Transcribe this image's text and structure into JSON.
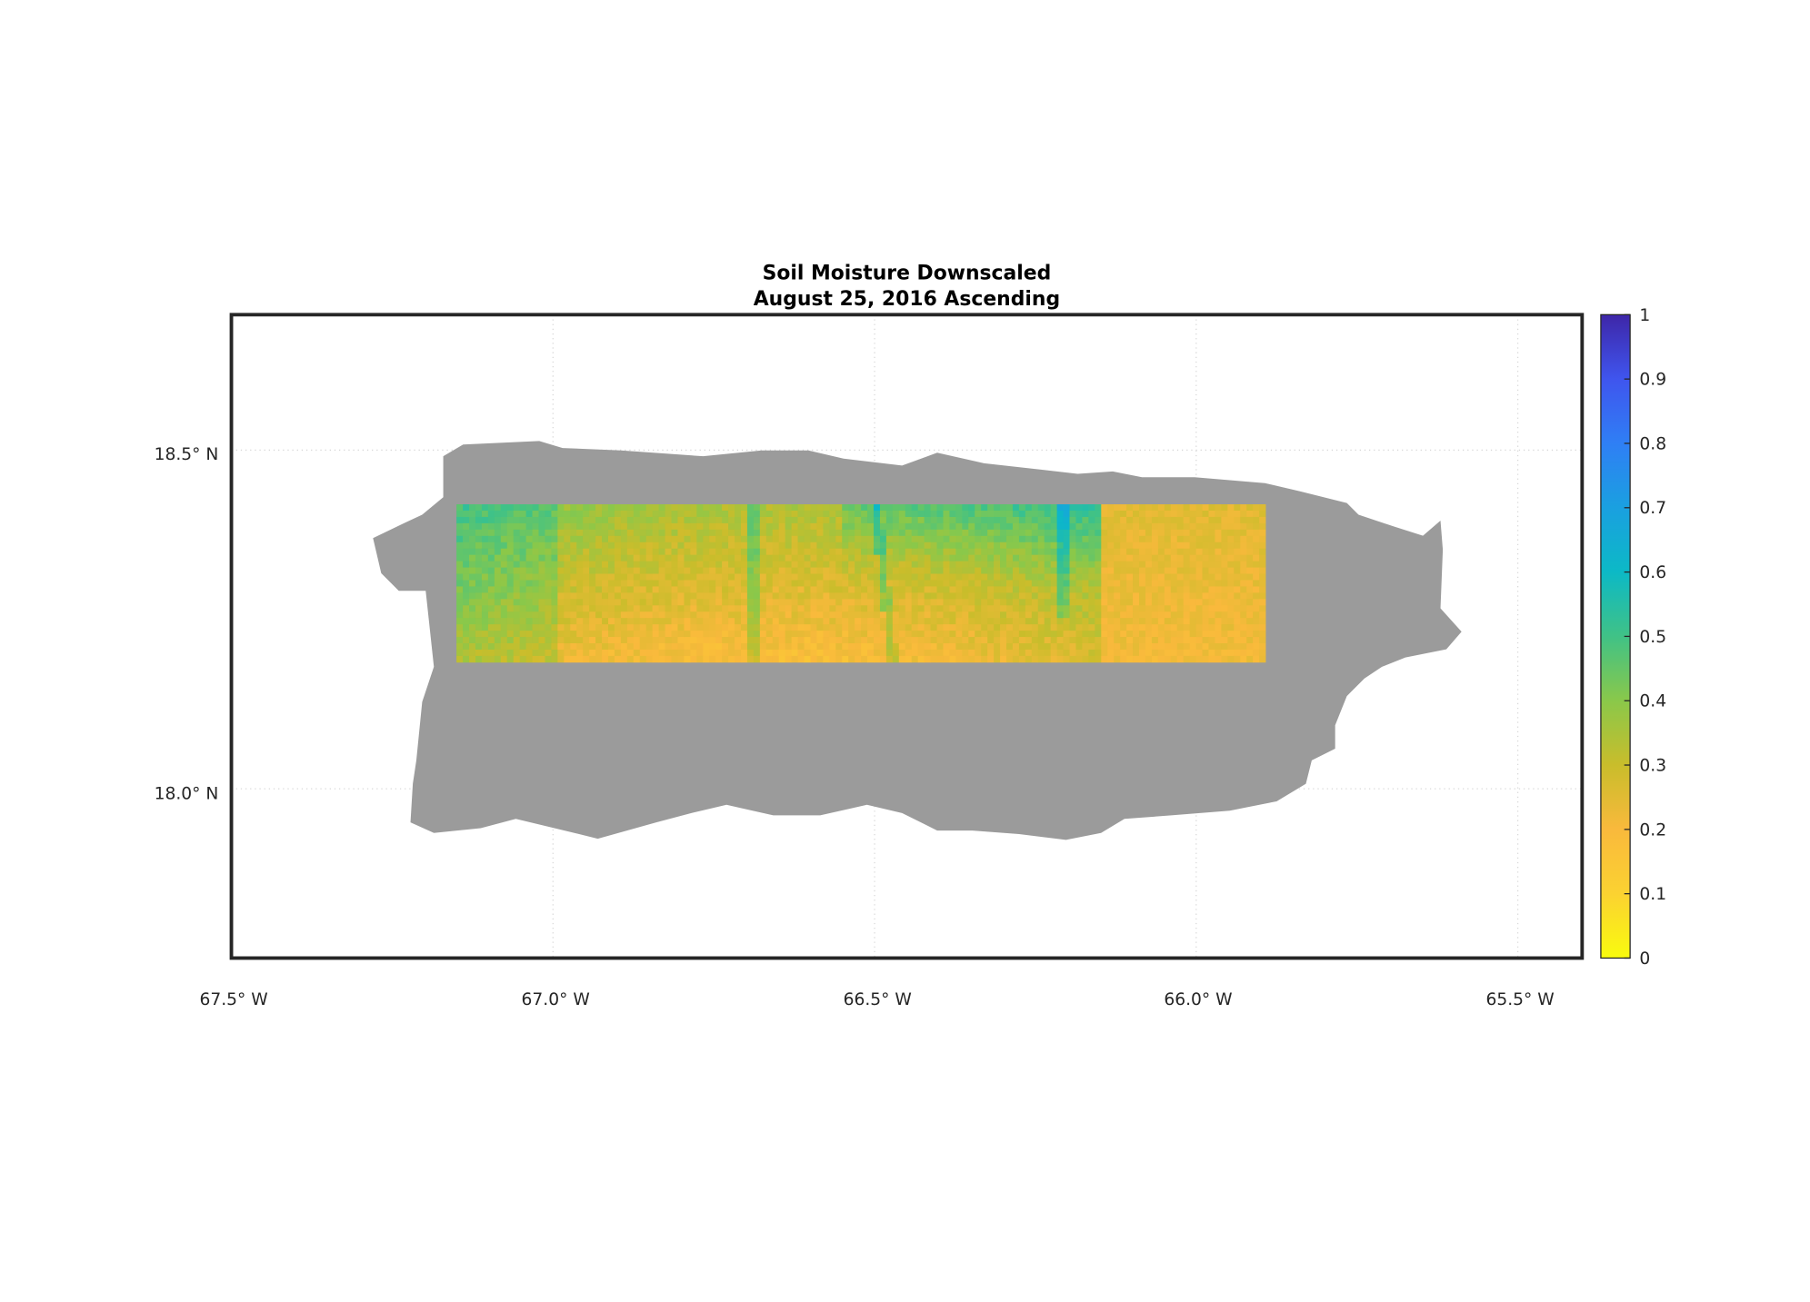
{
  "title": {
    "line1": "Soil Moisture Downscaled",
    "line2": "August 25, 2016 Ascending"
  },
  "map": {
    "region": "Puerto Rico",
    "lon_range": [
      -67.5,
      -65.4
    ],
    "lat_range": [
      17.75,
      18.7
    ],
    "lon_ticks": [
      {
        "value": -67.5,
        "label": "67.5° W"
      },
      {
        "value": -67.0,
        "label": "67.0° W"
      },
      {
        "value": -66.5,
        "label": "66.5° W"
      },
      {
        "value": -66.0,
        "label": "66.0° W"
      },
      {
        "value": -65.5,
        "label": "65.5° W"
      }
    ],
    "lat_ticks": [
      {
        "value": 18.5,
        "label": "18.5° N"
      },
      {
        "value": 18.0,
        "label": "18.0° N"
      }
    ],
    "grid": true,
    "land_color": "#9b9b9b",
    "data_extent": {
      "lon": [
        -67.15,
        -65.9
      ],
      "lat": [
        18.19,
        18.42
      ]
    }
  },
  "colorbar": {
    "min": 0,
    "max": 1,
    "ticks": [
      "0",
      "0.1",
      "0.2",
      "0.3",
      "0.4",
      "0.5",
      "0.6",
      "0.7",
      "0.8",
      "0.9",
      "1"
    ],
    "colormap": "parula (reversed)",
    "colors": [
      "#f9fb0e",
      "#fbd231",
      "#f9b93c",
      "#c9bd2b",
      "#8ac84a",
      "#40c286",
      "#0cb9c6",
      "#1aa0e0",
      "#2f7ff5",
      "#3f55ee",
      "#3e26a8"
    ]
  }
}
